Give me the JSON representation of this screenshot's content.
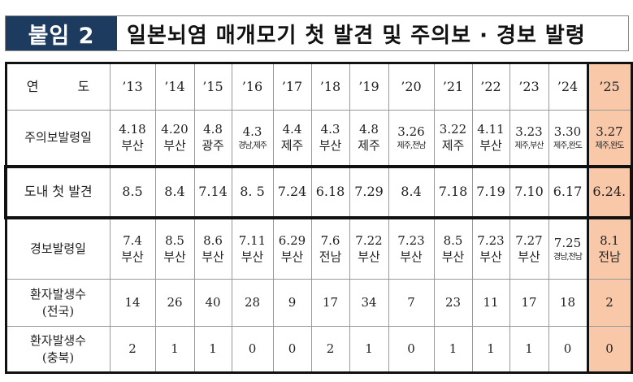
{
  "title": {
    "tag": "붙임 2",
    "text": "일본뇌염 매개모기 첫 발견 및 주의보 · 경보 발령"
  },
  "highlight_color": "#f9c8a8",
  "table": {
    "header": {
      "label": "연　　　도",
      "years": [
        "’13",
        "’14",
        "’15",
        "’16",
        "’17",
        "’18",
        "’19",
        "’20",
        "’21",
        "’22",
        "’23",
        "’24",
        "’25"
      ]
    },
    "rows": [
      {
        "label": "주의보발령일",
        "cells": [
          [
            "4.18",
            "부산"
          ],
          [
            "4.20",
            "부산"
          ],
          [
            "4.8",
            "광주"
          ],
          [
            "4.3",
            "경남,제주"
          ],
          [
            "4.4",
            "제주"
          ],
          [
            "4.3",
            "부산"
          ],
          [
            "4.8",
            "제주"
          ],
          [
            "3.26",
            "제주,전남"
          ],
          [
            "3.22",
            "제주"
          ],
          [
            "4.11",
            "부산"
          ],
          [
            "3.23",
            "제주,부산"
          ],
          [
            "3.30",
            "제주,완도"
          ],
          [
            "3.27",
            "제주,완도"
          ]
        ]
      },
      {
        "label": "도내 첫 발견",
        "cells": [
          [
            "8.5"
          ],
          [
            "8.4"
          ],
          [
            "7.14"
          ],
          [
            "8. 5"
          ],
          [
            "7.24"
          ],
          [
            "6.18"
          ],
          [
            "7.29"
          ],
          [
            "8.4"
          ],
          [
            "7.18"
          ],
          [
            "7.19"
          ],
          [
            "7.10"
          ],
          [
            "6.17"
          ],
          [
            "6.24."
          ]
        ]
      },
      {
        "label": "경보발령일",
        "cells": [
          [
            "7.4",
            "부산"
          ],
          [
            "8.5",
            "부산"
          ],
          [
            "8.6",
            "부산"
          ],
          [
            "7.11",
            "부산"
          ],
          [
            "6.29",
            "부산"
          ],
          [
            "7.6",
            "전남"
          ],
          [
            "7.22",
            "부산"
          ],
          [
            "7.23",
            "부산"
          ],
          [
            "8.5",
            "부산"
          ],
          [
            "7.23",
            "부산"
          ],
          [
            "7.27",
            "부산"
          ],
          [
            "7.25",
            "경남,전남"
          ],
          [
            "8.1",
            "전남"
          ]
        ]
      },
      {
        "label": "환자발생수",
        "sublabel": "(전국)",
        "cells": [
          [
            "14"
          ],
          [
            "26"
          ],
          [
            "40"
          ],
          [
            "28"
          ],
          [
            "9"
          ],
          [
            "17"
          ],
          [
            "34"
          ],
          [
            "7"
          ],
          [
            "23"
          ],
          [
            "11"
          ],
          [
            "17"
          ],
          [
            "18"
          ],
          [
            "2"
          ]
        ]
      },
      {
        "label": "환자발생수",
        "sublabel": "(충북)",
        "cells": [
          [
            "2"
          ],
          [
            "1"
          ],
          [
            "1"
          ],
          [
            "0"
          ],
          [
            "0"
          ],
          [
            "2"
          ],
          [
            "1"
          ],
          [
            "0"
          ],
          [
            "1"
          ],
          [
            "1"
          ],
          [
            "1"
          ],
          [
            "0"
          ],
          [
            "0"
          ]
        ]
      }
    ]
  }
}
